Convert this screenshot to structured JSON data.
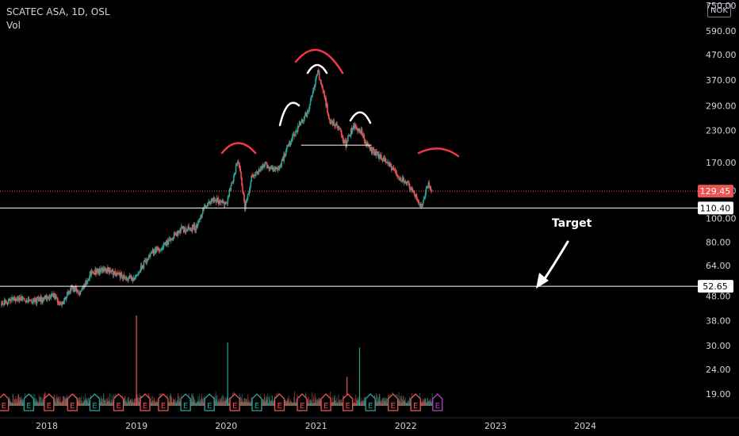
{
  "header": {
    "symbol": "SCATEC ASA, 1D, OSL",
    "indicator": "Vol",
    "currency": "NOK"
  },
  "colors": {
    "background": "#000000",
    "up": "#26a69a",
    "down": "#ef5350",
    "price_line": "#ef5350",
    "pattern_head": "#f23645",
    "pattern_shoulder": "#ffffff",
    "axis_text": "#d1d4dc",
    "earnings_down": "#ef5350",
    "earnings_up": "#26a69a",
    "earnings_next": "#ab47bc"
  },
  "chart_data": {
    "type": "candlestick",
    "title": "SCATEC ASA, 1D, OSL",
    "scale": "log",
    "ylim": [
      17,
      760
    ],
    "xlim": [
      "2017-07-01",
      "2024-06-30"
    ],
    "y_ticks": [
      19,
      24,
      30,
      38,
      48,
      64,
      80,
      100,
      130,
      170,
      230,
      290,
      370,
      470,
      590,
      750
    ],
    "y_tick_labels": [
      "19.00",
      "24.00",
      "30.00",
      "38.00",
      "48.00",
      "64.00",
      "80.00",
      "100.00",
      "130.00",
      "170.00",
      "230.00",
      "290.00",
      "370.00",
      "470.00",
      "590.00",
      "750.00"
    ],
    "x_ticks": [
      "2018",
      "2019",
      "2020",
      "2021",
      "2022",
      "2023",
      "2024"
    ],
    "x_tick_dates": [
      "2018-01-01",
      "2019-01-01",
      "2020-01-01",
      "2021-01-01",
      "2022-01-01",
      "2023-01-01",
      "2024-01-01"
    ],
    "price_path": [
      [
        "2017-07-01",
        45
      ],
      [
        "2017-09-01",
        47
      ],
      [
        "2017-11-15",
        46
      ],
      [
        "2018-02-01",
        48
      ],
      [
        "2018-03-01",
        44
      ],
      [
        "2018-04-10",
        52
      ],
      [
        "2018-05-15",
        50
      ],
      [
        "2018-07-01",
        60
      ],
      [
        "2018-09-01",
        62
      ],
      [
        "2018-11-01",
        58
      ],
      [
        "2018-12-20",
        56
      ],
      [
        "2019-03-01",
        72
      ],
      [
        "2019-05-01",
        78
      ],
      [
        "2019-07-01",
        90
      ],
      [
        "2019-09-01",
        92
      ],
      [
        "2019-10-01",
        110
      ],
      [
        "2019-11-15",
        120
      ],
      [
        "2020-01-01",
        115
      ],
      [
        "2020-02-20",
        175
      ],
      [
        "2020-03-18",
        110
      ],
      [
        "2020-04-15",
        150
      ],
      [
        "2020-06-01",
        165
      ],
      [
        "2020-08-01",
        160
      ],
      [
        "2020-10-01",
        220
      ],
      [
        "2020-11-01",
        250
      ],
      [
        "2020-12-01",
        280
      ],
      [
        "2021-01-08",
        400
      ],
      [
        "2021-02-01",
        330
      ],
      [
        "2021-02-25",
        250
      ],
      [
        "2021-04-01",
        240
      ],
      [
        "2021-05-01",
        200
      ],
      [
        "2021-06-01",
        240
      ],
      [
        "2021-07-01",
        230
      ],
      [
        "2021-08-01",
        195
      ],
      [
        "2021-09-15",
        180
      ],
      [
        "2021-10-15",
        170
      ],
      [
        "2021-12-01",
        150
      ],
      [
        "2022-01-15",
        135
      ],
      [
        "2022-03-08",
        112
      ],
      [
        "2022-04-01",
        140
      ],
      [
        "2022-04-20",
        129.45
      ]
    ],
    "volume_spikes": [
      [
        "2018-12-30",
        40
      ],
      [
        "2020-01-05",
        31
      ],
      [
        "2021-06-25",
        29.5
      ],
      [
        "2021-05-05",
        22.4
      ]
    ],
    "horizontal_lines": [
      {
        "value": 110.4,
        "label": "110.40"
      },
      {
        "value": 52.65,
        "label": "52.65"
      }
    ],
    "neckline": {
      "value": 200,
      "from": "2020-11-01",
      "to": "2021-08-15"
    },
    "last_price": {
      "value": 129.45,
      "label": "129.45"
    },
    "annotations": [
      {
        "text": "Target",
        "x": "2023-09-15",
        "y": 79
      }
    ],
    "earnings_markers": [
      {
        "date": "2017-07-10",
        "type": "down"
      },
      {
        "date": "2017-10-20",
        "type": "up"
      },
      {
        "date": "2018-01-10",
        "type": "down"
      },
      {
        "date": "2018-04-15",
        "type": "down"
      },
      {
        "date": "2018-07-15",
        "type": "up"
      },
      {
        "date": "2018-10-20",
        "type": "down"
      },
      {
        "date": "2019-02-05",
        "type": "down"
      },
      {
        "date": "2019-04-20",
        "type": "down"
      },
      {
        "date": "2019-07-20",
        "type": "up"
      },
      {
        "date": "2019-10-25",
        "type": "up"
      },
      {
        "date": "2020-02-05",
        "type": "down"
      },
      {
        "date": "2020-05-05",
        "type": "up"
      },
      {
        "date": "2020-08-05",
        "type": "down"
      },
      {
        "date": "2020-11-05",
        "type": "down"
      },
      {
        "date": "2021-02-10",
        "type": "down"
      },
      {
        "date": "2021-05-10",
        "type": "down"
      },
      {
        "date": "2021-08-10",
        "type": "up"
      },
      {
        "date": "2021-11-10",
        "type": "down"
      },
      {
        "date": "2022-02-10",
        "type": "down"
      },
      {
        "date": "2022-05-10",
        "type": "next"
      }
    ]
  }
}
